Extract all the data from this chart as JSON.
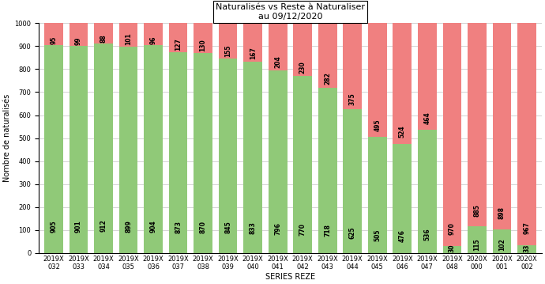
{
  "title": "Naturalisés vs Reste à Naturaliser\nau 09/12/2020",
  "xlabel": "SERIES REZE",
  "ylabel": "Nombre de naturalisés",
  "categories": [
    "2019X\n032",
    "2019X\n033",
    "2019X\n034",
    "2019X\n035",
    "2019X\n036",
    "2019X\n037",
    "2019X\n038",
    "2019X\n039",
    "2019X\n040",
    "2019X\n041",
    "2019X\n042",
    "2019X\n043",
    "2019X\n044",
    "2019X\n045",
    "2019X\n046",
    "2019X\n047",
    "2019X\n048",
    "2020X\n000",
    "2020X\n001",
    "2020X\n002"
  ],
  "naturalized": [
    905,
    901,
    912,
    899,
    904,
    873,
    870,
    845,
    833,
    796,
    770,
    718,
    625,
    505,
    476,
    536,
    30,
    115,
    102,
    33
  ],
  "remaining": [
    95,
    99,
    88,
    101,
    96,
    127,
    130,
    155,
    167,
    204,
    230,
    282,
    375,
    495,
    524,
    464,
    970,
    885,
    898,
    967
  ],
  "color_naturalized": "#90C978",
  "color_remaining": "#F08080",
  "ylim": [
    0,
    1000
  ],
  "yticks": [
    0,
    100,
    200,
    300,
    400,
    500,
    600,
    700,
    800,
    900,
    1000
  ],
  "bar_width": 0.75,
  "bg_color": "#FFFFFF",
  "grid_color": "#CCCCCC",
  "title_fontsize": 8,
  "label_fontsize": 7,
  "tick_fontsize": 6,
  "value_fontsize": 5.5
}
